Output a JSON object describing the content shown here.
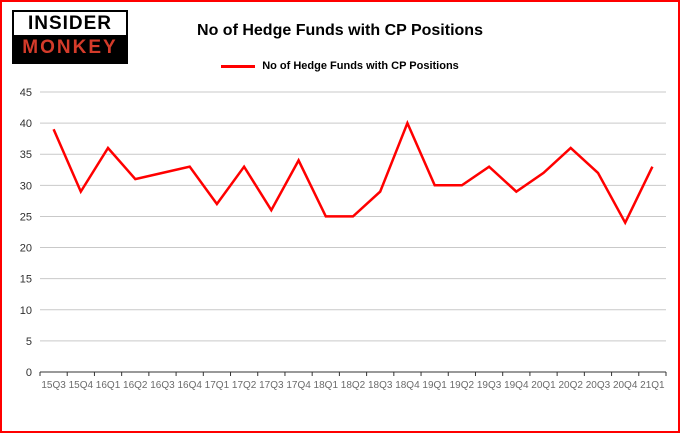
{
  "logo": {
    "line1": "INSIDER",
    "line2": "MONKEY"
  },
  "title": "No of Hedge Funds with CP Positions",
  "legend": {
    "label": "No of Hedge Funds with CP Positions",
    "color": "#ff0000"
  },
  "colors": {
    "border": "#ff0000",
    "gridline": "#c9c9c9",
    "axis": "#333333"
  },
  "chart_data": {
    "type": "line",
    "title": "No of Hedge Funds with CP Positions",
    "xlabel": "",
    "ylabel": "",
    "categories": [
      "15Q3",
      "15Q4",
      "16Q1",
      "16Q2",
      "16Q3",
      "16Q4",
      "17Q1",
      "17Q2",
      "17Q3",
      "17Q4",
      "18Q1",
      "18Q2",
      "18Q3",
      "18Q4",
      "19Q1",
      "19Q2",
      "19Q3",
      "19Q4",
      "20Q1",
      "20Q2",
      "20Q3",
      "20Q4",
      "21Q1"
    ],
    "values": [
      39,
      29,
      36,
      31,
      32,
      33,
      27,
      33,
      26,
      34,
      25,
      25,
      29,
      40,
      30,
      30,
      33,
      29,
      32,
      36,
      32,
      24,
      33
    ],
    "ylim": [
      0,
      45
    ],
    "ytick_step": 5,
    "line_color": "#ff0000",
    "grid": true,
    "legend_position": "top"
  }
}
